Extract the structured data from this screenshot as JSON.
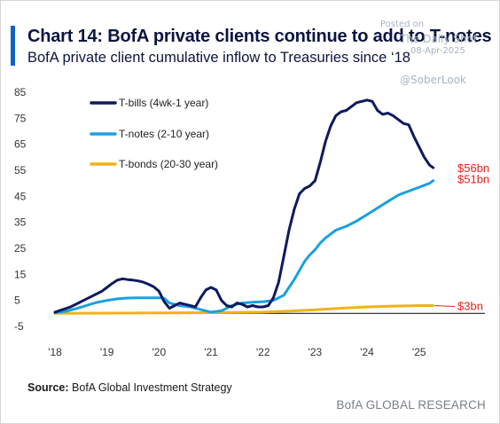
{
  "header": {
    "title": "Chart 14: BofA private clients continue to add to T-notes",
    "subtitle": "BofA private client cumulative inflow to Treasuries since ‘18"
  },
  "watermark": {
    "posted": "Posted on",
    "site": "The Daily Shot",
    "date": "08-Apr-2025",
    "handle": "@SoberLook"
  },
  "footer": {
    "source_label": "Source:",
    "source_text": "BofA Global Investment Strategy",
    "brand": "BofA GLOBAL RESEARCH"
  },
  "chart_data": {
    "type": "line",
    "title": "Chart 14: BofA private clients continue to add to T-notes",
    "subtitle": "BofA private client cumulative inflow to Treasuries since ‘18",
    "xlabel": "",
    "ylabel": "",
    "x_ticks": [
      "'18",
      "'19",
      "'20",
      "'21",
      "'22",
      "'23",
      "'24",
      "'25"
    ],
    "y_ticks": [
      85,
      75,
      65,
      55,
      45,
      35,
      25,
      15,
      5,
      -5
    ],
    "ylim": [
      -5,
      85
    ],
    "xlim": [
      2018,
      2025.55
    ],
    "grid": false,
    "legend_position": "top-left",
    "series": [
      {
        "name": "T-bills (4wk-1 year)",
        "color": "#0d1a5e",
        "end_label": "$56bn",
        "x": [
          2018.0,
          2018.15,
          2018.3,
          2018.45,
          2018.6,
          2018.75,
          2018.9,
          2019.0,
          2019.1,
          2019.2,
          2019.3,
          2019.4,
          2019.5,
          2019.6,
          2019.7,
          2019.8,
          2019.9,
          2020.0,
          2020.1,
          2020.2,
          2020.3,
          2020.4,
          2020.5,
          2020.6,
          2020.7,
          2020.8,
          2020.9,
          2021.0,
          2021.1,
          2021.2,
          2021.3,
          2021.4,
          2021.5,
          2021.6,
          2021.7,
          2021.8,
          2021.9,
          2022.0,
          2022.1,
          2022.2,
          2022.3,
          2022.4,
          2022.5,
          2022.6,
          2022.7,
          2022.8,
          2022.9,
          2023.0,
          2023.1,
          2023.2,
          2023.3,
          2023.4,
          2023.5,
          2023.6,
          2023.7,
          2023.8,
          2023.9,
          2024.0,
          2024.1,
          2024.2,
          2024.3,
          2024.4,
          2024.5,
          2024.6,
          2024.7,
          2024.8,
          2024.9,
          2025.0,
          2025.1,
          2025.2,
          2025.27
        ],
        "values": [
          0.5,
          1.5,
          2.5,
          4.0,
          5.5,
          7.0,
          8.5,
          10.0,
          11.5,
          12.8,
          13.3,
          13.0,
          12.8,
          12.5,
          12.0,
          11.2,
          10.2,
          8.5,
          4.5,
          2.0,
          3.0,
          4.0,
          3.5,
          3.0,
          2.5,
          6.0,
          9.0,
          10.0,
          9.0,
          5.0,
          3.0,
          2.5,
          4.0,
          3.5,
          2.5,
          3.0,
          2.5,
          2.5,
          3.0,
          6.0,
          12.0,
          22.0,
          32.0,
          40.0,
          46.0,
          48.0,
          49.0,
          51.0,
          58.0,
          66.0,
          72.0,
          76.0,
          77.5,
          78.0,
          79.5,
          81.0,
          81.5,
          82.0,
          81.5,
          78.0,
          76.5,
          77.0,
          76.0,
          74.5,
          73.0,
          72.5,
          68.0,
          64.0,
          60.0,
          57.0,
          56.0
        ]
      },
      {
        "name": "T-notes (2-10 year)",
        "color": "#1aa0e0",
        "end_label": "$51bn",
        "x": [
          2018.0,
          2018.2,
          2018.4,
          2018.6,
          2018.8,
          2019.0,
          2019.2,
          2019.4,
          2019.6,
          2019.8,
          2020.0,
          2020.1,
          2020.2,
          2020.4,
          2020.6,
          2020.8,
          2021.0,
          2021.2,
          2021.4,
          2021.6,
          2021.8,
          2022.0,
          2022.2,
          2022.4,
          2022.5,
          2022.6,
          2022.7,
          2022.8,
          2022.9,
          2023.0,
          2023.1,
          2023.2,
          2023.4,
          2023.6,
          2023.8,
          2024.0,
          2024.2,
          2024.4,
          2024.6,
          2024.8,
          2025.0,
          2025.2,
          2025.27
        ],
        "values": [
          0.2,
          0.8,
          1.8,
          3.0,
          4.2,
          5.0,
          5.6,
          5.9,
          6.0,
          6.0,
          6.0,
          5.8,
          4.0,
          3.0,
          2.5,
          1.5,
          0.5,
          1.0,
          3.0,
          4.0,
          4.3,
          4.5,
          5.0,
          7.0,
          10.0,
          13.0,
          16.5,
          20.0,
          22.5,
          24.5,
          27.0,
          29.0,
          32.0,
          33.5,
          35.5,
          38.0,
          40.5,
          43.0,
          45.5,
          47.0,
          48.5,
          50.0,
          51.0
        ]
      },
      {
        "name": "T-bonds (20-30 year)",
        "color": "#f0b21a",
        "end_label": "$3bn",
        "x": [
          2018.0,
          2019.0,
          2020.0,
          2021.0,
          2022.0,
          2022.5,
          2023.0,
          2023.5,
          2024.0,
          2024.5,
          2025.0,
          2025.27
        ],
        "values": [
          0.0,
          0.1,
          0.2,
          0.3,
          0.5,
          0.9,
          1.4,
          2.0,
          2.5,
          2.8,
          3.0,
          3.0
        ]
      }
    ],
    "end_label_color": "#e3231c"
  }
}
